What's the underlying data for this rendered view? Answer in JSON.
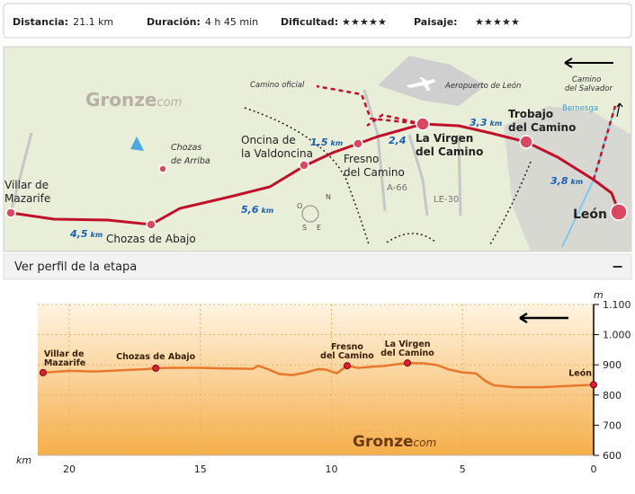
{
  "stats": [
    {
      "label": "Distancia:",
      "value": "21.1 km"
    },
    {
      "label": "Duración:",
      "value": "4 h 45 min"
    },
    {
      "label": "Dificultad:",
      "rating": 2,
      "max": 5,
      "color": "#e0404a"
    },
    {
      "label": "Paisaje:",
      "rating": 2,
      "max": 5,
      "color": "#6cc04a"
    }
  ],
  "map": {
    "logo": {
      "name": "Gronze",
      "suffix": "com"
    },
    "places": [
      {
        "label": [
          "Villar de",
          "Mazarife"
        ]
      },
      {
        "label": [
          "Chozas de Abajo"
        ]
      },
      {
        "label": [
          "Chozas",
          "de Arriba"
        ]
      },
      {
        "label": [
          "Oncina de",
          "la Valdoncina"
        ]
      },
      {
        "label": [
          "Fresno",
          "del Camino"
        ]
      },
      {
        "label": [
          "La Virgen",
          "del Camino"
        ]
      },
      {
        "label": [
          "Trobajo",
          "del Camino"
        ]
      },
      {
        "label": [
          "León"
        ]
      }
    ],
    "notes": [
      "Camino oficial",
      "Aeropuerto de León",
      "Camino",
      "del Salvador",
      "Bernesga",
      "A-66",
      "LE-30"
    ],
    "distances": [
      {
        "value": "4,5",
        "unit": "km"
      },
      {
        "value": "5,6",
        "unit": "km"
      },
      {
        "value": "1,5",
        "unit": "km"
      },
      {
        "value": "2,4"
      },
      {
        "value": "3,3",
        "unit": "km"
      },
      {
        "value": "3,8",
        "unit": "km"
      }
    ],
    "compass": [
      "N",
      "O",
      "S",
      "E"
    ]
  },
  "profile_panel": {
    "title": "Ver perfil de la etapa",
    "toggle": "−"
  },
  "chart_data": {
    "type": "line",
    "color": "#e8782a",
    "x_unit": "km",
    "y_unit": "m",
    "logo": {
      "name": "Gronze",
      "suffix": "com"
    },
    "x": [
      21,
      20,
      19,
      18,
      17,
      16.7,
      16,
      15,
      14,
      13,
      12.8,
      12.4,
      12,
      11.5,
      11,
      10.5,
      10.2,
      9.8,
      9.4,
      9,
      8.5,
      8,
      7.5,
      7.1,
      6.5,
      6,
      5.5,
      5,
      4.5,
      4.1,
      3.8,
      3,
      2,
      1,
      0
    ],
    "values": [
      874,
      880,
      878,
      882,
      886,
      889,
      890,
      890,
      888,
      887,
      897,
      885,
      870,
      866,
      874,
      886,
      884,
      872,
      897,
      890,
      893,
      896,
      902,
      906,
      905,
      900,
      884,
      875,
      872,
      845,
      832,
      826,
      826,
      830,
      834
    ],
    "xlim": [
      21.2,
      0
    ],
    "xticks": [
      20,
      15,
      10,
      5,
      0
    ],
    "ylim": [
      600,
      1100
    ],
    "yticks": [
      600,
      700,
      800,
      900,
      {
        "value": 1000,
        "label": "1.000"
      },
      {
        "value": 1100,
        "label": "1.100"
      }
    ],
    "grid": true,
    "markers": [
      {
        "label": [
          "Villar de",
          "Mazarife"
        ],
        "x": 21,
        "value": 874
      },
      {
        "label": [
          "Chozas de Abajo"
        ],
        "x": 16.7,
        "value": 889
      },
      {
        "label": [
          "Fresno",
          "del Camino"
        ],
        "x": 9.4,
        "value": 897
      },
      {
        "label": [
          "La Virgen",
          "del Camino"
        ],
        "x": 7.1,
        "value": 906
      },
      {
        "label": [
          "León"
        ],
        "x": 0,
        "value": 834
      }
    ]
  }
}
